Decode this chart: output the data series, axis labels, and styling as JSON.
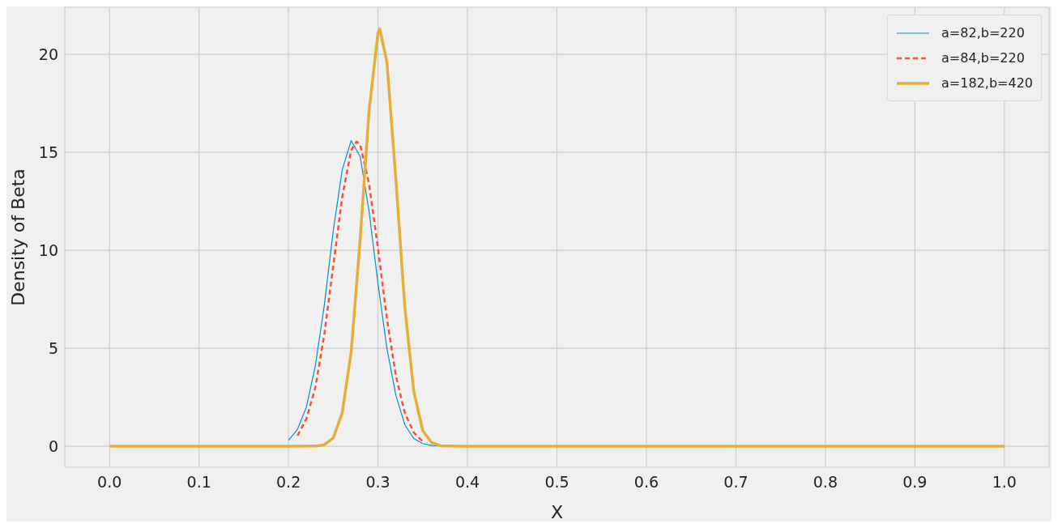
{
  "chart_data": {
    "type": "line",
    "xlabel": "X",
    "ylabel": "Density of Beta",
    "xlim": [
      -0.05,
      1.05
    ],
    "xticks": [
      {
        "value": 0,
        "label": "0.0"
      },
      {
        "value": 0.1,
        "label": "0.1"
      },
      {
        "value": 0.2,
        "label": "0.2"
      },
      {
        "value": 0.3,
        "label": "0.3"
      },
      {
        "value": 0.4,
        "label": "0.4"
      },
      {
        "value": 0.5,
        "label": "0.5"
      },
      {
        "value": 0.6,
        "label": "0.6"
      },
      {
        "value": 0.7,
        "label": "0.7"
      },
      {
        "value": 0.8,
        "label": "0.8"
      },
      {
        "value": 0.9,
        "label": "0.9"
      },
      {
        "value": 1,
        "label": "1.0"
      }
    ],
    "ylim": [
      -1.07,
      22.4
    ],
    "yticks": [
      0,
      5,
      10,
      15,
      20
    ],
    "grid": true,
    "legend": "top right",
    "series": [
      {
        "name": "a=82,b=220",
        "color": "#008fd5",
        "line_style": "solid",
        "x": [
          0.2,
          0.21,
          0.22,
          0.23,
          0.24,
          0.25,
          0.26,
          0.27,
          0.28,
          0.29,
          0.3,
          0.31,
          0.32,
          0.33,
          0.34,
          0.35,
          0.36,
          0.38
        ],
        "values": [
          0.31,
          0.86,
          2.0,
          4.1,
          7.2,
          11.0,
          14.1,
          15.6,
          14.8,
          12.0,
          8.3,
          5.0,
          2.6,
          1.1,
          0.4,
          0.14,
          0.04,
          0
        ]
      },
      {
        "name": "a=84,b=220",
        "color": "#fc4f30",
        "line_style": "dashed",
        "x": [
          0.21,
          0.22,
          0.23,
          0.24,
          0.25,
          0.26,
          0.27,
          0.276,
          0.28,
          0.29,
          0.3,
          0.31,
          0.32,
          0.33,
          0.34,
          0.35
        ],
        "values": [
          0.54,
          1.4,
          3.0,
          5.7,
          9.2,
          12.7,
          15.1,
          15.55,
          15.4,
          13.4,
          10.1,
          6.5,
          3.6,
          1.7,
          0.7,
          0.25
        ]
      },
      {
        "name": "a=182,b=420",
        "color": "#e5ae38",
        "line_style": "solid",
        "x": [
          0,
          0.2,
          0.23,
          0.24,
          0.25,
          0.26,
          0.27,
          0.28,
          0.29,
          0.3,
          0.302,
          0.31,
          0.32,
          0.33,
          0.34,
          0.35,
          0.36,
          0.37,
          0.39,
          0.5,
          1
        ],
        "values": [
          0,
          0,
          0.01,
          0.08,
          0.42,
          1.7,
          4.8,
          10.5,
          17.1,
          21.1,
          21.3,
          19.6,
          13.6,
          7.1,
          2.8,
          0.8,
          0.18,
          0.03,
          0,
          0,
          0
        ]
      }
    ]
  }
}
